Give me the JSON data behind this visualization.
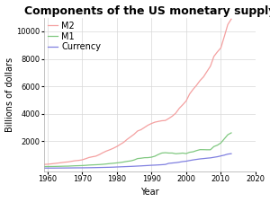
{
  "title": "Components of the US monetary supply",
  "xlabel": "Year",
  "ylabel": "Billions of dollars",
  "xlim": [
    1959,
    2020
  ],
  "ylim": [
    -200,
    11000
  ],
  "yticks": [
    2000,
    4000,
    6000,
    8000,
    10000
  ],
  "xticks": [
    1960,
    1970,
    1980,
    1990,
    2000,
    2010,
    2020
  ],
  "background_color": "#ffffff",
  "plot_bg_color": "#ffffff",
  "years": [
    1959,
    1960,
    1961,
    1962,
    1963,
    1964,
    1965,
    1966,
    1967,
    1968,
    1969,
    1970,
    1971,
    1972,
    1973,
    1974,
    1975,
    1976,
    1977,
    1978,
    1979,
    1980,
    1981,
    1982,
    1983,
    1984,
    1985,
    1986,
    1987,
    1988,
    1989,
    1990,
    1991,
    1992,
    1993,
    1994,
    1995,
    1996,
    1997,
    1998,
    1999,
    2000,
    2001,
    2002,
    2003,
    2004,
    2005,
    2006,
    2007,
    2008,
    2009,
    2010,
    2011,
    2012,
    2013
  ],
  "M2": [
    297,
    312,
    335,
    363,
    393,
    424,
    459,
    480,
    524,
    566,
    589,
    628,
    710,
    802,
    855,
    902,
    1016,
    1152,
    1271,
    1366,
    1474,
    1600,
    1756,
    1910,
    2127,
    2311,
    2497,
    2734,
    2832,
    2995,
    3159,
    3280,
    3380,
    3434,
    3484,
    3502,
    3649,
    3817,
    4037,
    4383,
    4645,
    4925,
    5435,
    5775,
    6073,
    6415,
    6682,
    7077,
    7467,
    8178,
    8508,
    8796,
    9629,
    10500,
    10900
  ],
  "M1": [
    140,
    141,
    146,
    148,
    154,
    161,
    168,
    172,
    185,
    197,
    204,
    214,
    228,
    249,
    263,
    274,
    287,
    306,
    331,
    358,
    382,
    408,
    436,
    474,
    521,
    552,
    620,
    724,
    750,
    787,
    793,
    826,
    897,
    1025,
    1129,
    1151,
    1127,
    1127,
    1075,
    1095,
    1124,
    1087,
    1183,
    1219,
    1306,
    1376,
    1374,
    1366,
    1366,
    1601,
    1700,
    1862,
    2162,
    2461,
    2600
  ],
  "Currency": [
    28,
    29,
    30,
    31,
    33,
    35,
    37,
    39,
    42,
    45,
    47,
    49,
    52,
    56,
    60,
    65,
    71,
    77,
    83,
    89,
    97,
    109,
    120,
    130,
    141,
    151,
    163,
    177,
    189,
    204,
    218,
    235,
    247,
    261,
    276,
    295,
    374,
    400,
    424,
    460,
    505,
    532,
    581,
    626,
    663,
    699,
    724,
    751,
    775,
    817,
    858,
    916,
    975,
    1050,
    1080
  ],
  "M2_color": "#f4a0a0",
  "M1_color": "#80c880",
  "Currency_color": "#8080e0",
  "grid_color": "#d8d8d8",
  "title_fontsize": 9,
  "label_fontsize": 7,
  "tick_fontsize": 6,
  "legend_fontsize": 7,
  "linewidth": 0.9
}
